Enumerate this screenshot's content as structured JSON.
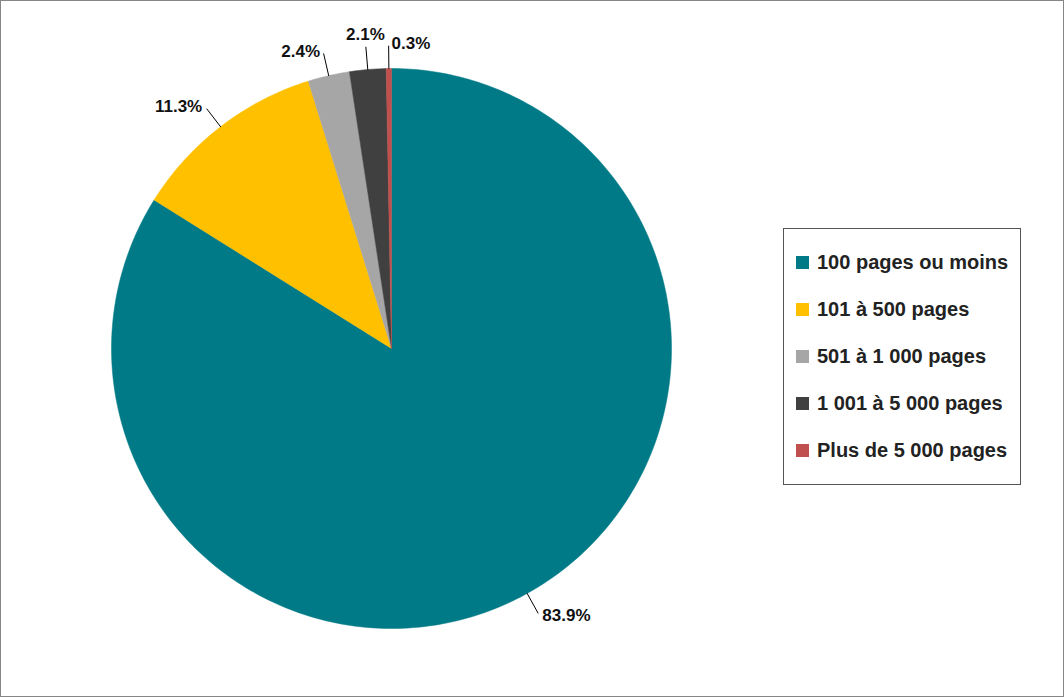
{
  "chart_data": {
    "type": "pie",
    "categories": [
      "100 pages ou moins",
      "101 à 500 pages",
      "501 à 1 000 pages",
      "1 001 à 5 000 pages",
      "Plus de 5 000 pages"
    ],
    "values": [
      83.9,
      11.3,
      2.4,
      2.1,
      0.3
    ],
    "value_labels": [
      "83.9%",
      "11.3%",
      "2.4%",
      "2.1%",
      "0.3%"
    ],
    "colors": [
      "#007a87",
      "#ffc000",
      "#a6a6a6",
      "#404040",
      "#c0504d"
    ],
    "data_labels": true,
    "legend": "right"
  }
}
